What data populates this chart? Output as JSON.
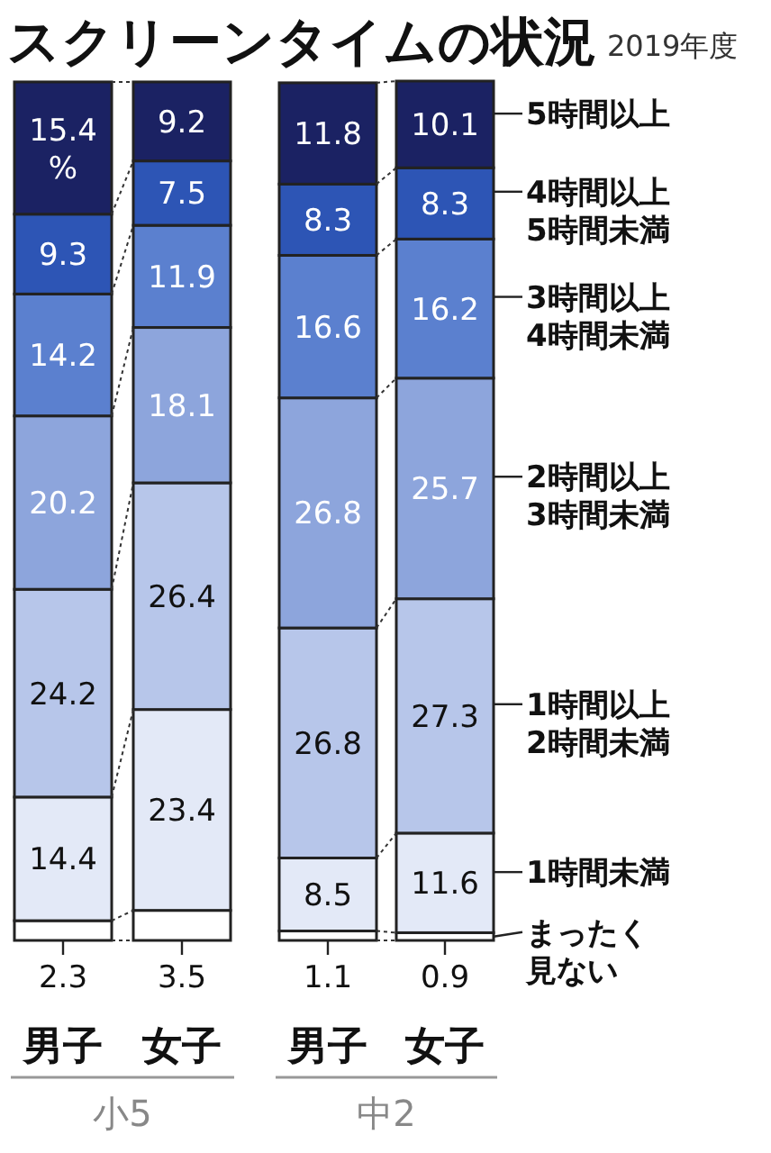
{
  "chart_data": {
    "type": "bar",
    "stacked": true,
    "title": "スクリーンタイムの状況",
    "subtitle": "2019年度",
    "categories": [
      "男子",
      "女子",
      "男子",
      "女子"
    ],
    "annotations": [
      "小5",
      "中2"
    ],
    "data_labels": true,
    "legend": "right",
    "series": [
      {
        "name": "まったく見ない",
        "color": "#ffffff",
        "values": [
          2.3,
          3.5,
          1.1,
          0.9
        ]
      },
      {
        "name": "1時間未満",
        "color": "#e3e9f7",
        "values": [
          14.4,
          23.4,
          8.5,
          11.6
        ]
      },
      {
        "name": "1時間以上2時間未満",
        "color": "#b7c6ea",
        "values": [
          24.2,
          26.4,
          26.8,
          27.3
        ]
      },
      {
        "name": "2時間以上3時間未満",
        "color": "#8da5dc",
        "values": [
          20.2,
          18.1,
          26.8,
          25.7
        ]
      },
      {
        "name": "3時間以上4時間未満",
        "color": "#5b80cf",
        "values": [
          14.2,
          11.9,
          16.6,
          16.2
        ]
      },
      {
        "name": "4時間以上5時間未満",
        "color": "#2d55b5",
        "values": [
          9.3,
          7.5,
          8.3,
          8.3
        ]
      },
      {
        "name": "5時間以上",
        "color": "#1b2263",
        "values": [
          15.4,
          9.2,
          11.8,
          10.1
        ],
        "value_labels": [
          "15.4\n%",
          "9.2",
          "11.8",
          "10.1"
        ]
      }
    ]
  }
}
